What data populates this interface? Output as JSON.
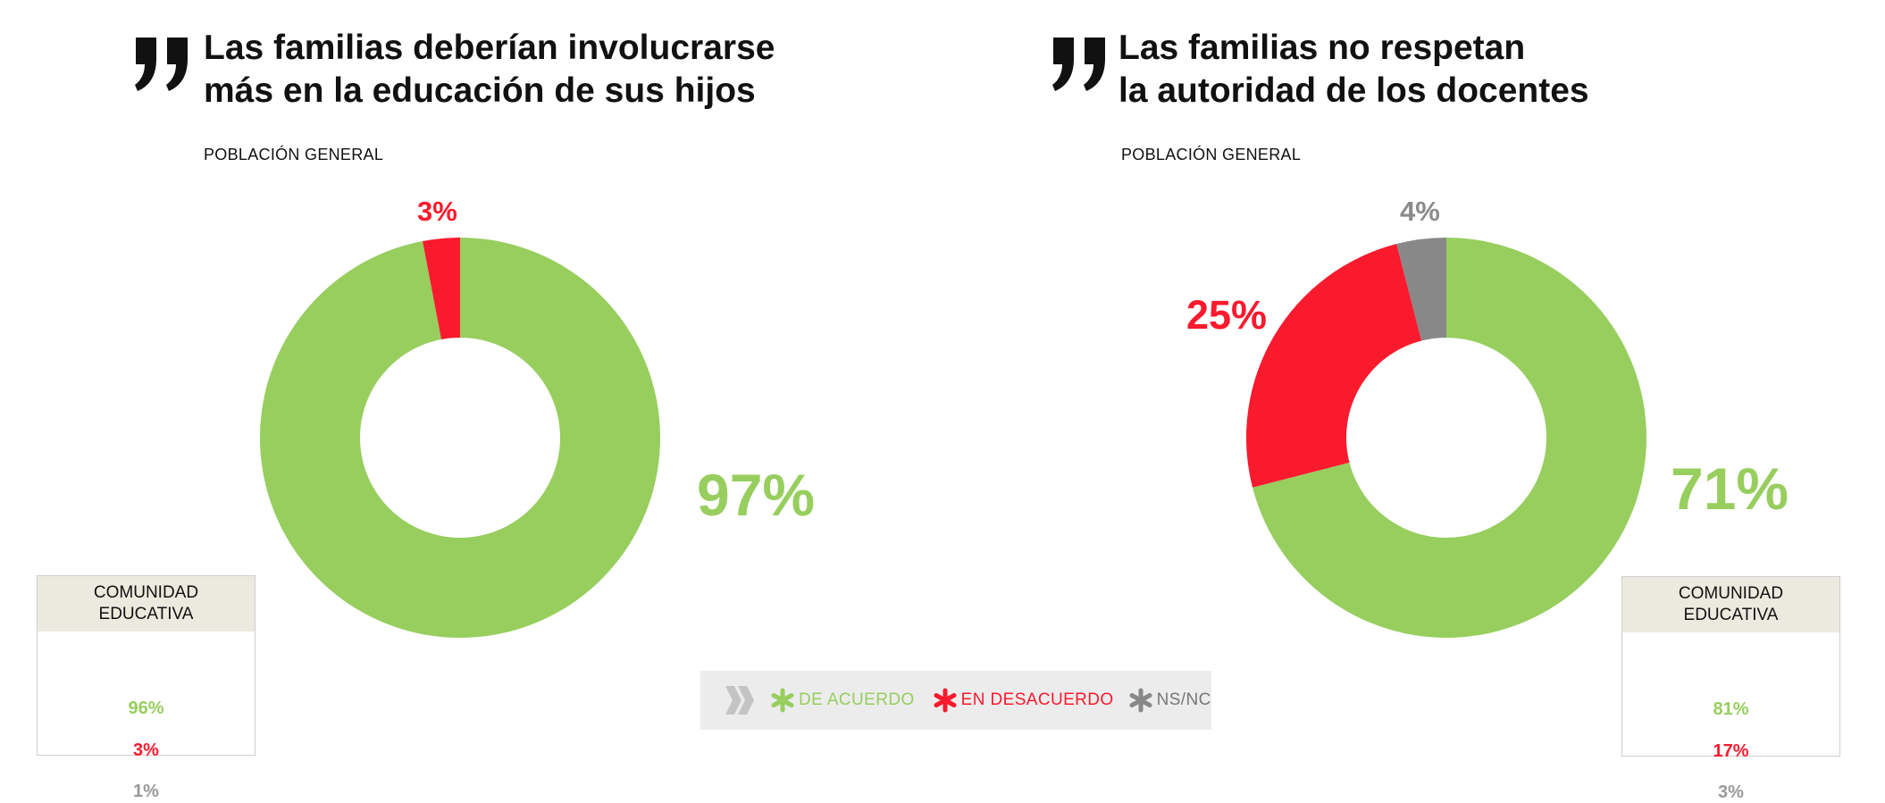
{
  "colors": {
    "agree": "#97ce5e",
    "disagree": "#fa1a2e",
    "nsnc": "#888888",
    "table_head": "#ece9df"
  },
  "legend": {
    "agree_label": "DE ACUERDO",
    "disagree_label": "EN DESACUERDO",
    "nsnc_label": "NS/NC",
    "arrow_icon": "double-chevron-icon",
    "marker_icon": "asterisk-icon"
  },
  "panels": [
    {
      "title_line1": "Las familias deberían involucrarse",
      "title_line2": "más en la educación de sus hijos",
      "subtitle": "POBLACIÓN GENERAL",
      "pct_agree": "97%",
      "pct_disagree": "3%",
      "community": {
        "header_line1": "COMUNIDAD",
        "header_line2": "EDUCATIVA",
        "agree": "96%",
        "disagree": "3%",
        "nsnc": "1%"
      }
    },
    {
      "title_line1": "Las familias  no respetan",
      "title_line2": "la autoridad de los docentes",
      "subtitle": "POBLACIÓN GENERAL",
      "pct_agree": "71%",
      "pct_disagree": "25%",
      "pct_nsnc": "4%",
      "community": {
        "header_line1": "COMUNIDAD",
        "header_line2": "EDUCATIVA",
        "agree": "81%",
        "disagree": "17%",
        "nsnc": "3%"
      }
    }
  ],
  "chart_data": [
    {
      "type": "pie",
      "subtype": "donut",
      "title": "Las familias deberían involucrarse más en la educación de sus hijos",
      "subtitle": "POBLACIÓN GENERAL",
      "categories": [
        "DE ACUERDO",
        "EN DESACUERDO"
      ],
      "values": [
        97,
        3
      ],
      "colors": [
        "#97ce5e",
        "#fa1a2e"
      ],
      "community_values": {
        "DE ACUERDO": 96,
        "EN DESACUERDO": 3,
        "NS/NC": 1
      }
    },
    {
      "type": "pie",
      "subtype": "donut",
      "title": "Las familias  no respetan la autoridad de los docentes",
      "subtitle": "POBLACIÓN GENERAL",
      "categories": [
        "DE ACUERDO",
        "EN DESACUERDO",
        "NS/NC"
      ],
      "values": [
        71,
        25,
        4
      ],
      "colors": [
        "#97ce5e",
        "#fa1a2e",
        "#888888"
      ],
      "community_values": {
        "DE ACUERDO": 81,
        "EN DESACUERDO": 17,
        "NS/NC": 3
      }
    }
  ]
}
